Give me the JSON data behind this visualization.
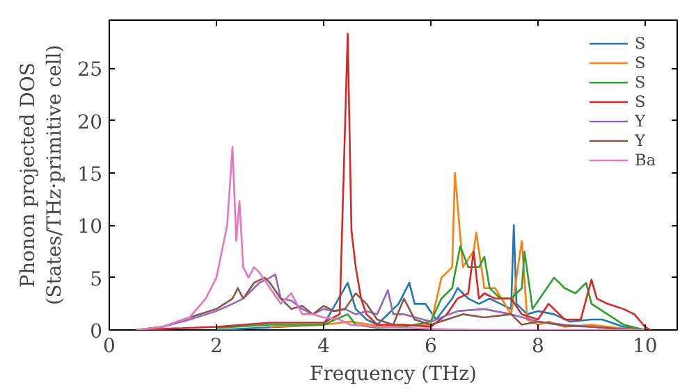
{
  "chart_data": {
    "type": "line",
    "xlabel": "Frequency (THz)",
    "ylabel": "Phonon projected DOS\n(States/THz·primitive cell)",
    "xlim": [
      0,
      10.6
    ],
    "ylim": [
      0,
      29.6
    ],
    "xticks": [
      0,
      2,
      4,
      6,
      8,
      10
    ],
    "yticks": [
      0,
      5,
      10,
      15,
      20,
      25
    ],
    "grid": false,
    "legend": "top right",
    "marker": "none",
    "line_style": "solid",
    "series": [
      {
        "name": "S",
        "color": "#1f77b4",
        "x": [
          2,
          4,
          4.45,
          4.6,
          4.8,
          5.0,
          5.4,
          5.6,
          5.7,
          5.9,
          6.1,
          6.4,
          6.5,
          6.7,
          6.9,
          7.1,
          7.3,
          7.5,
          7.55,
          7.6,
          7.8,
          8.0,
          8.3,
          8.6,
          9.0,
          9.2,
          9.6,
          10
        ],
        "values": [
          0,
          0.5,
          4.5,
          2,
          1,
          0.5,
          2.5,
          4.5,
          2.5,
          2.5,
          1,
          3,
          4,
          3,
          2.5,
          3,
          2.5,
          2,
          10,
          2.5,
          1.5,
          1.8,
          1.5,
          0.8,
          1,
          1,
          0.3,
          0
        ]
      },
      {
        "name": "S",
        "color": "#ff7f0e",
        "x": [
          3,
          4,
          4.5,
          5,
          6.0,
          6.2,
          6.4,
          6.45,
          6.6,
          6.8,
          6.85,
          7.0,
          7.2,
          7.5,
          7.6,
          7.7,
          7.8,
          8.0,
          8.2,
          8.5,
          9.0,
          9.5,
          10
        ],
        "values": [
          0.3,
          0.5,
          0.8,
          0.4,
          0.5,
          5,
          6,
          15,
          6,
          7.5,
          9.3,
          4,
          4,
          1.5,
          5,
          8.5,
          1,
          0.5,
          0.8,
          0.3,
          0.5,
          0.2,
          0
        ]
      },
      {
        "name": "S",
        "color": "#2ca02c",
        "x": [
          2,
          3,
          4,
          4.45,
          4.6,
          5,
          5.5,
          6.0,
          6.2,
          6.4,
          6.55,
          6.7,
          6.9,
          7.0,
          7.1,
          7.3,
          7.5,
          7.7,
          7.75,
          7.9,
          8.1,
          8.3,
          8.5,
          8.7,
          8.9,
          9.0,
          9.3,
          9.6,
          10
        ],
        "values": [
          0.2,
          0.5,
          0.5,
          1.5,
          0.5,
          0.2,
          0.3,
          0.8,
          3,
          4,
          8,
          6,
          6,
          7,
          4,
          3,
          3,
          4,
          7.5,
          2,
          3.5,
          5,
          4,
          3.5,
          4.5,
          2.5,
          1.5,
          0.5,
          0
        ]
      },
      {
        "name": "S",
        "color": "#d62728",
        "x": [
          0.5,
          2,
          3,
          4,
          4.3,
          4.45,
          4.52,
          4.6,
          4.7,
          4.8,
          5,
          5.5,
          6,
          6.3,
          6.5,
          6.7,
          6.8,
          6.9,
          7.0,
          7.2,
          7.5,
          7.7,
          8.0,
          8.2,
          8.5,
          8.8,
          9.0,
          9.1,
          9.3,
          9.6,
          9.8,
          10,
          10.1
        ],
        "values": [
          0,
          0.3,
          0.7,
          0.7,
          1.5,
          28.3,
          9.5,
          6,
          3,
          1.5,
          0.5,
          0.5,
          0.3,
          1.5,
          3,
          3.5,
          7.5,
          3,
          3.5,
          3,
          3,
          1.5,
          1,
          2.5,
          1,
          1,
          4.8,
          3,
          2.5,
          2,
          1.5,
          0.3,
          0
        ]
      },
      {
        "name": "Y",
        "color": "#9467bd",
        "x": [
          0.5,
          1.0,
          1.5,
          2.0,
          2.3,
          2.5,
          2.8,
          3.0,
          3.1,
          3.2,
          3.4,
          3.6,
          3.8,
          4.0,
          4.2,
          4.4,
          4.6,
          4.8,
          5.0,
          5.2,
          5.3,
          5.5,
          6.0,
          6.5,
          7.0,
          7.5,
          8,
          8.5,
          9,
          9.5,
          10
        ],
        "values": [
          0,
          0.3,
          1,
          1.8,
          2.5,
          3,
          4.5,
          5,
          5.3,
          3,
          2.8,
          2,
          1.5,
          2,
          1.8,
          2,
          1.5,
          1.8,
          1.5,
          3.8,
          1.5,
          1.5,
          0.8,
          1.8,
          2,
          1.5,
          0.8,
          0.5,
          0.3,
          0.1,
          0
        ]
      },
      {
        "name": "Y",
        "color": "#8c564b",
        "x": [
          0.5,
          1.0,
          1.5,
          2.0,
          2.3,
          2.4,
          2.5,
          2.7,
          2.9,
          3.0,
          3.2,
          3.4,
          3.6,
          3.8,
          4.0,
          4.2,
          4.4,
          4.6,
          4.8,
          5.0,
          5.3,
          5.5,
          5.7,
          6.0,
          6.3,
          6.6,
          7.0,
          7.5,
          7.7,
          8,
          8.5,
          9,
          9.5,
          10
        ],
        "values": [
          0,
          0.3,
          1.2,
          2,
          3,
          4,
          3,
          4.5,
          5,
          4.5,
          3,
          2,
          2.3,
          1.5,
          2.3,
          1.8,
          2,
          3.5,
          2.5,
          1,
          0.5,
          3,
          1,
          0.5,
          1,
          1.5,
          1.2,
          1.5,
          0.5,
          0.8,
          0.4,
          0.3,
          0.1,
          0
        ]
      },
      {
        "name": "Ba",
        "color": "#e377c2",
        "x": [
          0.5,
          1.0,
          1.5,
          1.8,
          2.0,
          2.2,
          2.3,
          2.37,
          2.43,
          2.5,
          2.6,
          2.7,
          2.8,
          3.0,
          3.2,
          3.4,
          3.6,
          3.8,
          4.0,
          4.3,
          4.5,
          5,
          5.5,
          6,
          7,
          8,
          10
        ],
        "values": [
          0,
          0.3,
          1.2,
          3,
          5,
          10,
          17.5,
          8.5,
          12.3,
          6,
          5,
          6,
          5.5,
          4,
          2.5,
          3.5,
          1.5,
          1.5,
          1.2,
          1,
          0.5,
          0.3,
          0.2,
          0.1,
          0,
          0,
          0
        ]
      }
    ]
  }
}
